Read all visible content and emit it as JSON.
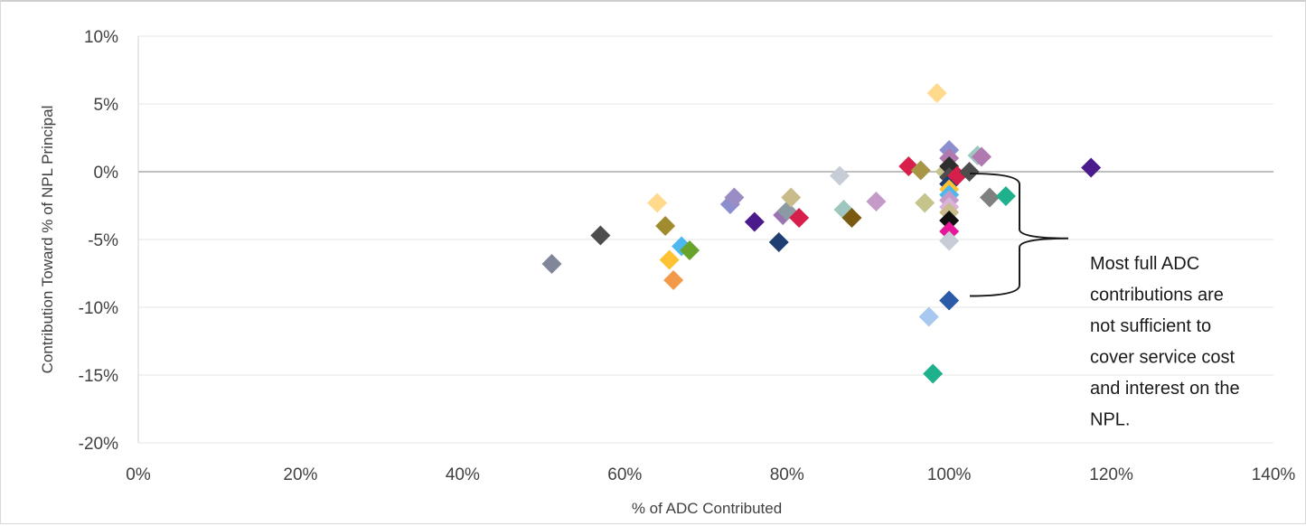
{
  "chart_data": {
    "type": "scatter",
    "title": "",
    "xlabel": "% of ADC Contributed",
    "ylabel": "Contribution Toward % of NPL Principal",
    "xlim": [
      0,
      140
    ],
    "ylim": [
      -20,
      10
    ],
    "x_ticks": [
      0,
      20,
      40,
      60,
      80,
      100,
      120,
      140
    ],
    "y_ticks": [
      10,
      5,
      0,
      -5,
      -10,
      -15,
      -20
    ],
    "x_tick_labels": [
      "0%",
      "20%",
      "40%",
      "60%",
      "80%",
      "100%",
      "120%",
      "140%"
    ],
    "y_tick_labels": [
      "10%",
      "5%",
      "0%",
      "-5%",
      "-10%",
      "-15%",
      "-20%"
    ],
    "grid": "horizontal",
    "marker": "diamond",
    "points": [
      {
        "x": 51,
        "y": -6.8,
        "color": "#7f8799"
      },
      {
        "x": 57,
        "y": -4.7,
        "color": "#4d4d4d"
      },
      {
        "x": 64,
        "y": -2.3,
        "color": "#ffd98c"
      },
      {
        "x": 65,
        "y": -4.0,
        "color": "#a08c2e"
      },
      {
        "x": 65.5,
        "y": -6.5,
        "color": "#ffc233"
      },
      {
        "x": 66,
        "y": -8.0,
        "color": "#f29a4a"
      },
      {
        "x": 67,
        "y": -5.5,
        "color": "#4db8f0"
      },
      {
        "x": 68,
        "y": -5.8,
        "color": "#6aa32b"
      },
      {
        "x": 73,
        "y": -2.4,
        "color": "#8c8fcf"
      },
      {
        "x": 73.5,
        "y": -1.9,
        "color": "#9a8cc4"
      },
      {
        "x": 76,
        "y": -3.7,
        "color": "#4b1a8c"
      },
      {
        "x": 79,
        "y": -5.2,
        "color": "#1f3f73"
      },
      {
        "x": 79.5,
        "y": -3.2,
        "color": "#9b74b2"
      },
      {
        "x": 80,
        "y": -2.9,
        "color": "#8c9aa3"
      },
      {
        "x": 80.5,
        "y": -1.9,
        "color": "#c8bb8c"
      },
      {
        "x": 81.5,
        "y": -3.4,
        "color": "#d61f4a"
      },
      {
        "x": 86.5,
        "y": -0.3,
        "color": "#c7cdd6"
      },
      {
        "x": 87,
        "y": -2.8,
        "color": "#9fc7c0"
      },
      {
        "x": 88,
        "y": -3.4,
        "color": "#7a5a10"
      },
      {
        "x": 91,
        "y": -2.2,
        "color": "#c49ac9"
      },
      {
        "x": 95,
        "y": 0.4,
        "color": "#d61f4a"
      },
      {
        "x": 96.5,
        "y": 0.1,
        "color": "#a89546"
      },
      {
        "x": 97,
        "y": -2.3,
        "color": "#c4c48c"
      },
      {
        "x": 97.5,
        "y": -10.7,
        "color": "#a7c8ef"
      },
      {
        "x": 98,
        "y": -14.9,
        "color": "#1fb08c"
      },
      {
        "x": 98.5,
        "y": 5.8,
        "color": "#ffd98c"
      },
      {
        "x": 99.5,
        "y": 0.0,
        "color": "#c4c48c"
      },
      {
        "x": 100,
        "y": 1.6,
        "color": "#8c8fcf"
      },
      {
        "x": 100,
        "y": 1.0,
        "color": "#b07ab0"
      },
      {
        "x": 100,
        "y": 0.4,
        "color": "#2e2e2e"
      },
      {
        "x": 100,
        "y": -0.4,
        "color": "#4d4d4d"
      },
      {
        "x": 100,
        "y": -0.9,
        "color": "#1f3f73"
      },
      {
        "x": 100,
        "y": -1.3,
        "color": "#ffc233"
      },
      {
        "x": 100,
        "y": -1.7,
        "color": "#4db8f0"
      },
      {
        "x": 100,
        "y": -2.1,
        "color": "#c49ac9"
      },
      {
        "x": 100,
        "y": -2.6,
        "color": "#d9b3d9"
      },
      {
        "x": 100,
        "y": -3.0,
        "color": "#c8bb8c"
      },
      {
        "x": 100,
        "y": -3.6,
        "color": "#111111"
      },
      {
        "x": 100,
        "y": -4.4,
        "color": "#e6189a"
      },
      {
        "x": 100,
        "y": -5.1,
        "color": "#c7cdd6"
      },
      {
        "x": 100,
        "y": -9.5,
        "color": "#2a5aa8"
      },
      {
        "x": 101,
        "y": -0.3,
        "color": "#d61f4a"
      },
      {
        "x": 102.5,
        "y": 0.0,
        "color": "#4d4d4d"
      },
      {
        "x": 103.5,
        "y": 1.2,
        "color": "#9fc7c0"
      },
      {
        "x": 104,
        "y": 1.1,
        "color": "#b07ab0"
      },
      {
        "x": 105,
        "y": -1.9,
        "color": "#808080"
      },
      {
        "x": 107,
        "y": -1.8,
        "color": "#1fb08c"
      },
      {
        "x": 117.5,
        "y": 0.3,
        "color": "#4b1a8c"
      }
    ],
    "annotations": [
      {
        "lines": [
          "Most full ADC",
          "contributions are",
          "not sufficient to",
          "cover service cost",
          "and interest on the",
          "NPL."
        ],
        "bracket_y_range": [
          0,
          -9.3
        ]
      }
    ]
  }
}
